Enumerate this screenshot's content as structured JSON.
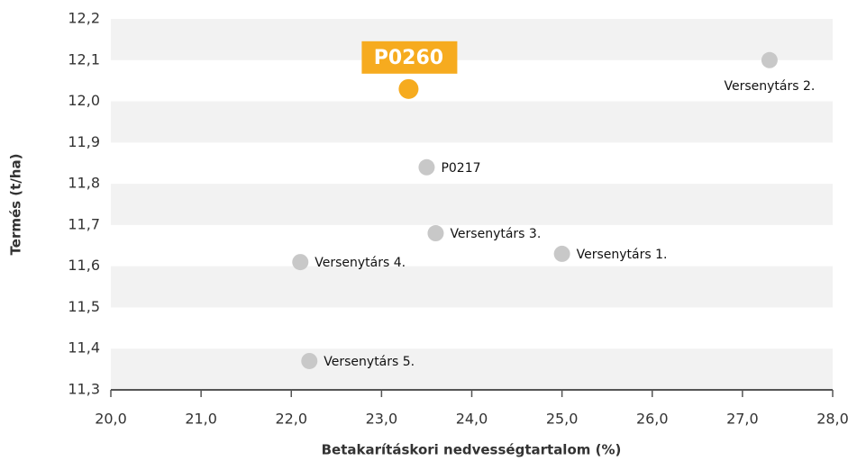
{
  "chart_data": {
    "type": "scatter",
    "x_label": "Betakarításkori nedvességtartalom (%)",
    "y_label": "Termés (t/ha)",
    "labels": [
      "P0260",
      "Versenytárs 2.",
      "P0217",
      "Versenytárs 3.",
      "Versenytárs 1.",
      "Versenytárs 4.",
      "Versenytárs 5."
    ],
    "x": [
      23.3,
      27.3,
      23.5,
      23.6,
      25.0,
      22.1,
      22.2
    ],
    "values": [
      12.03,
      12.1,
      11.84,
      11.68,
      11.63,
      11.61,
      11.37
    ],
    "colors": [
      "#f6ab1f",
      "#c8c8c8",
      "#c8c8c8",
      "#c8c8c8",
      "#c8c8c8",
      "#c8c8c8",
      "#c8c8c8"
    ],
    "highlight": 0,
    "xlim": [
      20,
      28
    ],
    "ylim": [
      11.3,
      12.2
    ],
    "xticks": [
      {
        "value": 20,
        "label": "20,0"
      },
      {
        "value": 21,
        "label": "21,0"
      },
      {
        "value": 22,
        "label": "22,0"
      },
      {
        "value": 23,
        "label": "23,0"
      },
      {
        "value": 24,
        "label": "24,0"
      },
      {
        "value": 25,
        "label": "25,0"
      },
      {
        "value": 26,
        "label": "26,0"
      },
      {
        "value": 27,
        "label": "27,0"
      },
      {
        "value": 28,
        "label": "28,0"
      }
    ],
    "yticks": [
      {
        "value": 11.3,
        "label": "11,3"
      },
      {
        "value": 11.4,
        "label": "11,4"
      },
      {
        "value": 11.5,
        "label": "11,5"
      },
      {
        "value": 11.6,
        "label": "11,6"
      },
      {
        "value": 11.7,
        "label": "11,7"
      },
      {
        "value": 11.8,
        "label": "11,8"
      },
      {
        "value": 11.9,
        "label": "11,9"
      },
      {
        "value": 12.0,
        "label": "12,0"
      },
      {
        "value": 12.1,
        "label": "12,1"
      },
      {
        "value": 12.2,
        "label": "12,2"
      }
    ],
    "grid": "bands"
  }
}
